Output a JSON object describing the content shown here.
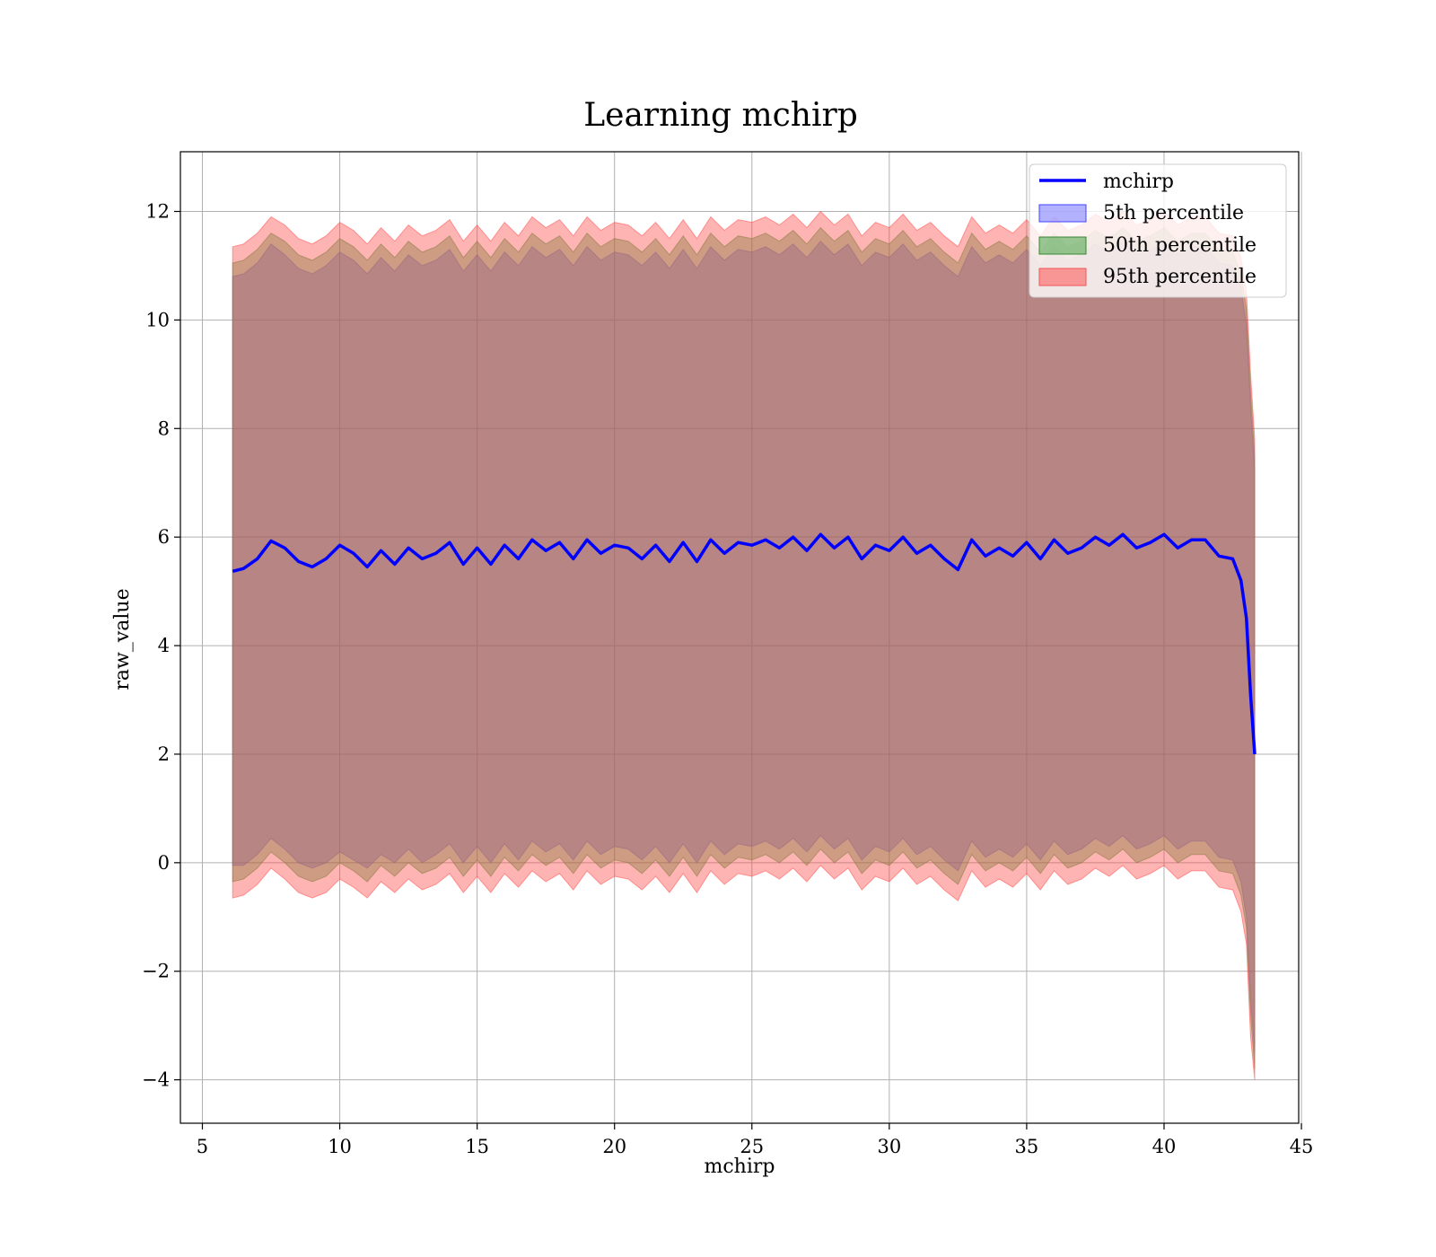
{
  "chart_data": {
    "type": "line",
    "title": "Learning mchirp",
    "xlabel": "mchirp",
    "ylabel": "raw_value",
    "xlim": [
      4.2,
      44.9
    ],
    "ylim": [
      -4.8,
      13.1
    ],
    "x_ticks": [
      5,
      10,
      15,
      20,
      25,
      30,
      35,
      40,
      45
    ],
    "y_ticks": [
      -4,
      -2,
      0,
      2,
      4,
      6,
      8,
      10,
      12
    ],
    "x_tick_labels": [
      "5",
      "10",
      "15",
      "20",
      "25",
      "30",
      "35",
      "40",
      "45"
    ],
    "y_tick_labels": [
      "−4",
      "−2",
      "0",
      "2",
      "4",
      "6",
      "8",
      "10",
      "12"
    ],
    "grid": true,
    "legend_position": "top-right",
    "x": [
      6.1,
      6.5,
      7.0,
      7.5,
      8.0,
      8.5,
      9.0,
      9.5,
      10.0,
      10.5,
      11.0,
      11.5,
      12.0,
      12.5,
      13.0,
      13.5,
      14.0,
      14.5,
      15.0,
      15.5,
      16.0,
      16.5,
      17.0,
      17.5,
      18.0,
      18.5,
      19.0,
      19.5,
      20.0,
      20.5,
      21.0,
      21.5,
      22.0,
      22.5,
      23.0,
      23.5,
      24.0,
      24.5,
      25.0,
      25.5,
      26.0,
      26.5,
      27.0,
      27.5,
      28.0,
      28.5,
      29.0,
      29.5,
      30.0,
      30.5,
      31.0,
      31.5,
      32.0,
      32.5,
      33.0,
      33.5,
      34.0,
      34.5,
      35.0,
      35.5,
      36.0,
      36.5,
      37.0,
      37.5,
      38.0,
      38.5,
      39.0,
      39.5,
      40.0,
      40.5,
      41.0,
      41.5,
      42.0,
      42.5,
      42.8,
      43.0,
      43.15,
      43.3
    ],
    "series": [
      {
        "name": "mchirp",
        "color": "#0000ff",
        "kind": "line",
        "values": [
          5.37,
          5.42,
          5.6,
          5.93,
          5.8,
          5.55,
          5.45,
          5.6,
          5.85,
          5.7,
          5.45,
          5.75,
          5.5,
          5.8,
          5.6,
          5.7,
          5.9,
          5.5,
          5.8,
          5.5,
          5.85,
          5.6,
          5.95,
          5.75,
          5.9,
          5.6,
          5.95,
          5.7,
          5.85,
          5.8,
          5.6,
          5.85,
          5.55,
          5.9,
          5.55,
          5.95,
          5.7,
          5.9,
          5.85,
          5.95,
          5.8,
          6.0,
          5.75,
          6.05,
          5.8,
          6.0,
          5.6,
          5.85,
          5.75,
          6.0,
          5.7,
          5.85,
          5.6,
          5.4,
          5.95,
          5.65,
          5.8,
          5.65,
          5.9,
          5.6,
          5.95,
          5.7,
          5.8,
          6.0,
          5.85,
          6.05,
          5.8,
          5.9,
          6.05,
          5.8,
          5.95,
          5.95,
          5.65,
          5.6,
          5.2,
          4.5,
          3.1,
          2.0
        ]
      },
      {
        "name": "5th percentile",
        "color": "#6666ff",
        "kind": "band",
        "lower": [
          -0.05,
          -0.05,
          0.15,
          0.45,
          0.25,
          0.0,
          -0.1,
          0.0,
          0.2,
          0.05,
          -0.1,
          0.15,
          0.0,
          0.25,
          0.0,
          0.15,
          0.35,
          0.0,
          0.3,
          0.0,
          0.35,
          0.05,
          0.4,
          0.2,
          0.35,
          0.05,
          0.4,
          0.15,
          0.3,
          0.25,
          0.05,
          0.3,
          0.0,
          0.35,
          0.0,
          0.4,
          0.15,
          0.35,
          0.3,
          0.4,
          0.25,
          0.45,
          0.2,
          0.5,
          0.25,
          0.45,
          0.05,
          0.3,
          0.2,
          0.45,
          0.15,
          0.3,
          0.05,
          -0.15,
          0.4,
          0.1,
          0.25,
          0.1,
          0.35,
          0.05,
          0.4,
          0.15,
          0.25,
          0.45,
          0.3,
          0.5,
          0.25,
          0.35,
          0.5,
          0.25,
          0.4,
          0.4,
          0.1,
          0.05,
          -0.35,
          -1.0,
          -2.5,
          -3.5
        ],
        "upper": [
          10.8,
          10.85,
          11.05,
          11.4,
          11.2,
          10.95,
          10.85,
          11.0,
          11.25,
          11.1,
          10.85,
          11.15,
          10.9,
          11.2,
          11.0,
          11.1,
          11.3,
          10.9,
          11.2,
          10.9,
          11.25,
          11.0,
          11.35,
          11.15,
          11.3,
          11.0,
          11.35,
          11.1,
          11.25,
          11.2,
          11.0,
          11.25,
          10.95,
          11.3,
          10.95,
          11.35,
          11.1,
          11.3,
          11.25,
          11.35,
          11.2,
          11.4,
          11.15,
          11.45,
          11.2,
          11.4,
          11.0,
          11.25,
          11.15,
          11.4,
          11.1,
          11.25,
          11.0,
          10.8,
          11.35,
          11.05,
          11.2,
          11.05,
          11.3,
          11.0,
          11.35,
          11.1,
          11.2,
          11.4,
          11.25,
          11.45,
          11.2,
          11.3,
          11.45,
          11.2,
          11.35,
          11.35,
          11.05,
          11.0,
          10.6,
          9.9,
          8.4,
          7.2
        ]
      },
      {
        "name": "50th percentile",
        "color": "#339933",
        "kind": "band",
        "lower": [
          -0.35,
          -0.3,
          -0.1,
          0.2,
          0.0,
          -0.25,
          -0.35,
          -0.25,
          0.0,
          -0.15,
          -0.35,
          -0.05,
          -0.25,
          0.0,
          -0.2,
          -0.1,
          0.1,
          -0.25,
          0.05,
          -0.25,
          0.1,
          -0.15,
          0.15,
          -0.05,
          0.1,
          -0.2,
          0.15,
          -0.1,
          0.05,
          0.0,
          -0.2,
          0.05,
          -0.25,
          0.1,
          -0.25,
          0.15,
          -0.1,
          0.1,
          0.05,
          0.15,
          0.0,
          0.2,
          -0.05,
          0.25,
          0.0,
          0.2,
          -0.2,
          0.05,
          -0.05,
          0.2,
          -0.1,
          0.05,
          -0.2,
          -0.4,
          0.15,
          -0.15,
          0.0,
          -0.15,
          0.1,
          -0.2,
          0.15,
          -0.1,
          0.0,
          0.2,
          0.05,
          0.25,
          0.0,
          0.1,
          0.25,
          0.0,
          0.15,
          0.15,
          -0.15,
          -0.2,
          -0.6,
          -1.2,
          -2.8,
          -3.8
        ],
        "upper": [
          11.05,
          11.1,
          11.3,
          11.6,
          11.45,
          11.2,
          11.1,
          11.25,
          11.5,
          11.35,
          11.1,
          11.4,
          11.15,
          11.45,
          11.25,
          11.35,
          11.55,
          11.15,
          11.45,
          11.15,
          11.5,
          11.25,
          11.6,
          11.4,
          11.55,
          11.25,
          11.6,
          11.35,
          11.5,
          11.45,
          11.25,
          11.5,
          11.2,
          11.55,
          11.2,
          11.6,
          11.35,
          11.55,
          11.5,
          11.6,
          11.45,
          11.65,
          11.4,
          11.7,
          11.45,
          11.65,
          11.25,
          11.5,
          11.4,
          11.65,
          11.35,
          11.5,
          11.25,
          11.05,
          11.6,
          11.3,
          11.45,
          11.3,
          11.55,
          11.25,
          11.6,
          11.35,
          11.45,
          11.65,
          11.5,
          11.7,
          11.45,
          11.55,
          11.7,
          11.45,
          11.6,
          11.6,
          11.3,
          11.25,
          10.85,
          10.2,
          8.7,
          7.5
        ]
      },
      {
        "name": "95th percentile",
        "color": "#ff4444",
        "kind": "band",
        "lower": [
          -0.65,
          -0.6,
          -0.4,
          -0.1,
          -0.3,
          -0.55,
          -0.65,
          -0.55,
          -0.3,
          -0.45,
          -0.65,
          -0.35,
          -0.55,
          -0.3,
          -0.5,
          -0.4,
          -0.2,
          -0.55,
          -0.25,
          -0.55,
          -0.2,
          -0.45,
          -0.15,
          -0.35,
          -0.2,
          -0.5,
          -0.15,
          -0.4,
          -0.25,
          -0.3,
          -0.5,
          -0.25,
          -0.55,
          -0.2,
          -0.55,
          -0.15,
          -0.4,
          -0.2,
          -0.25,
          -0.15,
          -0.3,
          -0.1,
          -0.35,
          -0.05,
          -0.3,
          -0.1,
          -0.5,
          -0.25,
          -0.35,
          -0.1,
          -0.4,
          -0.25,
          -0.5,
          -0.7,
          -0.15,
          -0.45,
          -0.3,
          -0.45,
          -0.2,
          -0.5,
          -0.15,
          -0.4,
          -0.3,
          -0.1,
          -0.25,
          -0.05,
          -0.3,
          -0.2,
          -0.05,
          -0.3,
          -0.15,
          -0.15,
          -0.45,
          -0.5,
          -0.9,
          -1.5,
          -3.2,
          -4.0
        ],
        "upper": [
          11.35,
          11.4,
          11.6,
          11.9,
          11.75,
          11.5,
          11.4,
          11.55,
          11.8,
          11.65,
          11.4,
          11.7,
          11.45,
          11.75,
          11.55,
          11.65,
          11.85,
          11.45,
          11.75,
          11.45,
          11.8,
          11.55,
          11.9,
          11.7,
          11.85,
          11.55,
          11.9,
          11.65,
          11.8,
          11.75,
          11.55,
          11.8,
          11.5,
          11.85,
          11.5,
          11.9,
          11.65,
          11.85,
          11.8,
          11.9,
          11.75,
          11.95,
          11.7,
          12.0,
          11.75,
          11.95,
          11.55,
          11.8,
          11.7,
          11.95,
          11.65,
          11.8,
          11.55,
          11.35,
          11.9,
          11.6,
          11.75,
          11.6,
          11.85,
          11.55,
          11.9,
          11.65,
          11.75,
          11.95,
          11.8,
          12.0,
          11.75,
          11.85,
          12.0,
          11.75,
          11.9,
          11.9,
          11.6,
          11.55,
          11.15,
          10.5,
          9.0,
          7.8
        ]
      }
    ]
  }
}
